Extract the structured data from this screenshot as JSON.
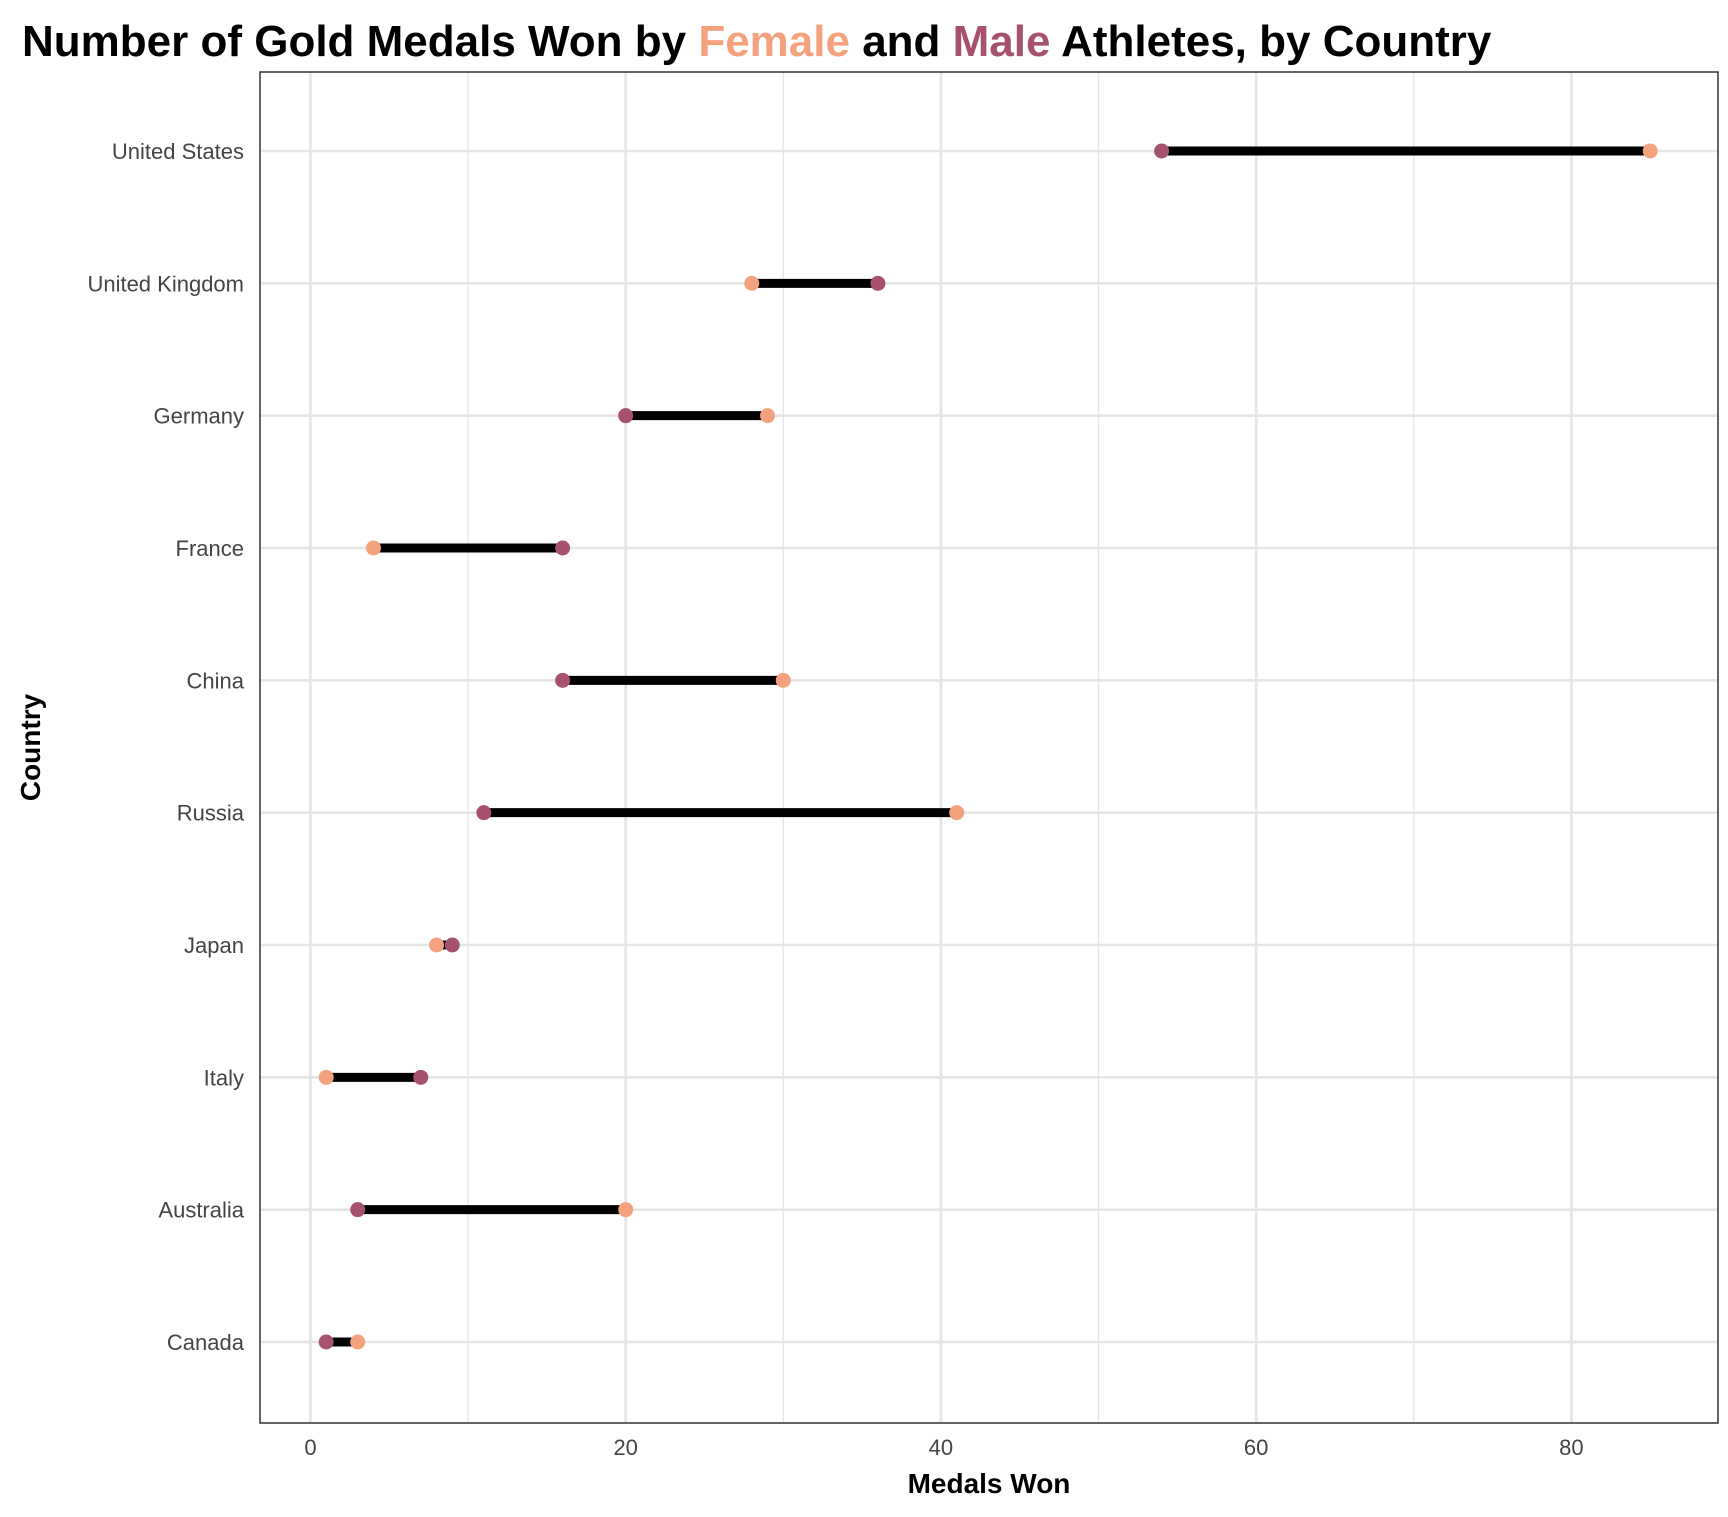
{
  "chart_data": {
    "type": "dumbbell",
    "title": {
      "parts": [
        {
          "text": "Number of Gold Medals Won by ",
          "role": "plain"
        },
        {
          "text": "Female",
          "role": "female"
        },
        {
          "text": " and ",
          "role": "plain"
        },
        {
          "text": "Male",
          "role": "male"
        },
        {
          "text": " Athletes, by Country",
          "role": "plain"
        }
      ]
    },
    "xlabel": "Medals Won",
    "ylabel": "Country",
    "xlim": [
      -3.2,
      89.3
    ],
    "x_ticks": [
      0,
      20,
      40,
      60,
      80
    ],
    "x_minor_ticks": [
      10,
      30,
      50,
      70
    ],
    "grid": true,
    "colors": {
      "female": "#F4A27E",
      "male": "#A6516F",
      "segment": "#000000",
      "grid": "#E5E5E5",
      "frame": "#333333"
    },
    "categories": [
      "United States",
      "United Kingdom",
      "Germany",
      "France",
      "China",
      "Russia",
      "Japan",
      "Italy",
      "Australia",
      "Canada"
    ],
    "series": [
      {
        "name": "Female",
        "role": "female",
        "values": [
          85,
          28,
          29,
          4,
          30,
          41,
          8,
          1,
          20,
          3
        ]
      },
      {
        "name": "Male",
        "role": "male",
        "values": [
          54,
          36,
          20,
          16,
          16,
          11,
          9,
          7,
          3,
          1
        ]
      }
    ]
  }
}
